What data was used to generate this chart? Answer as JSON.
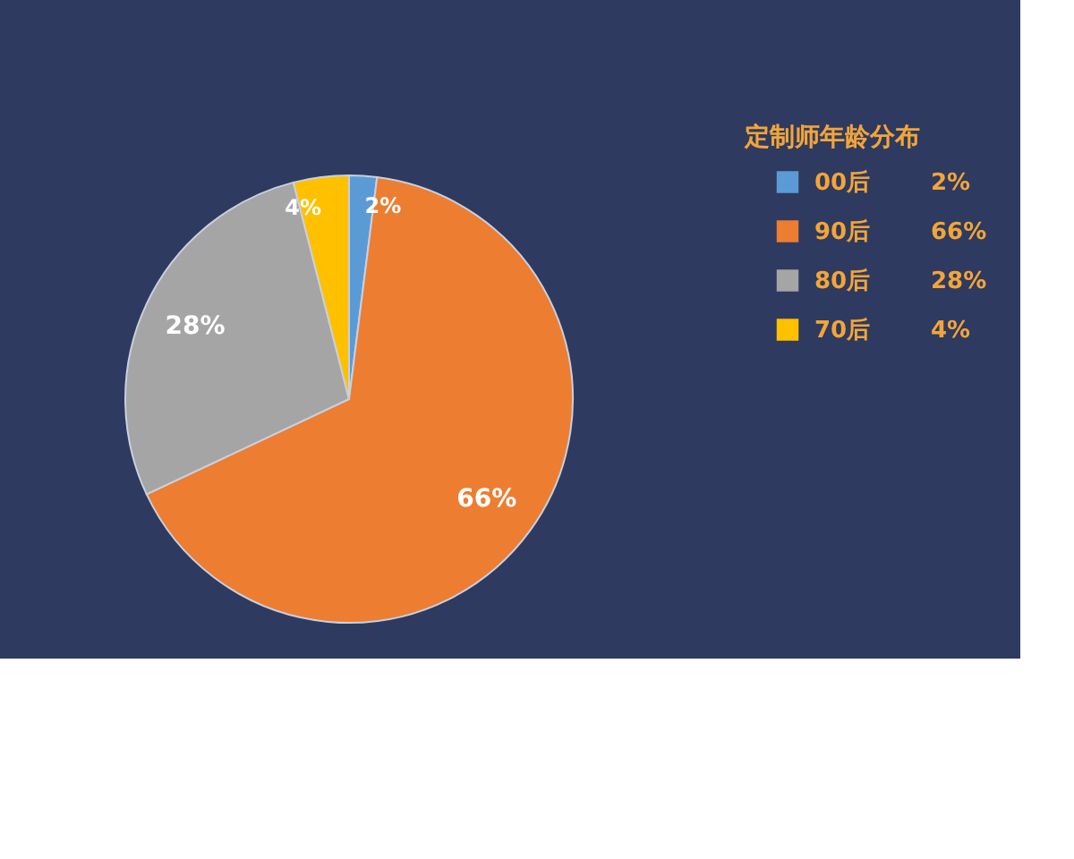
{
  "chart_data": {
    "type": "pie",
    "legend_title": "定制师年龄分布",
    "categories": [
      "00后",
      "90后",
      "80后",
      "70后"
    ],
    "values": [
      2,
      66,
      28,
      4
    ],
    "value_labels": [
      "2%",
      "66%",
      "28%",
      "4%"
    ],
    "colors": [
      "#5b9bd5",
      "#ed7d31",
      "#a5a5a5",
      "#ffc000"
    ],
    "legend": "right"
  }
}
